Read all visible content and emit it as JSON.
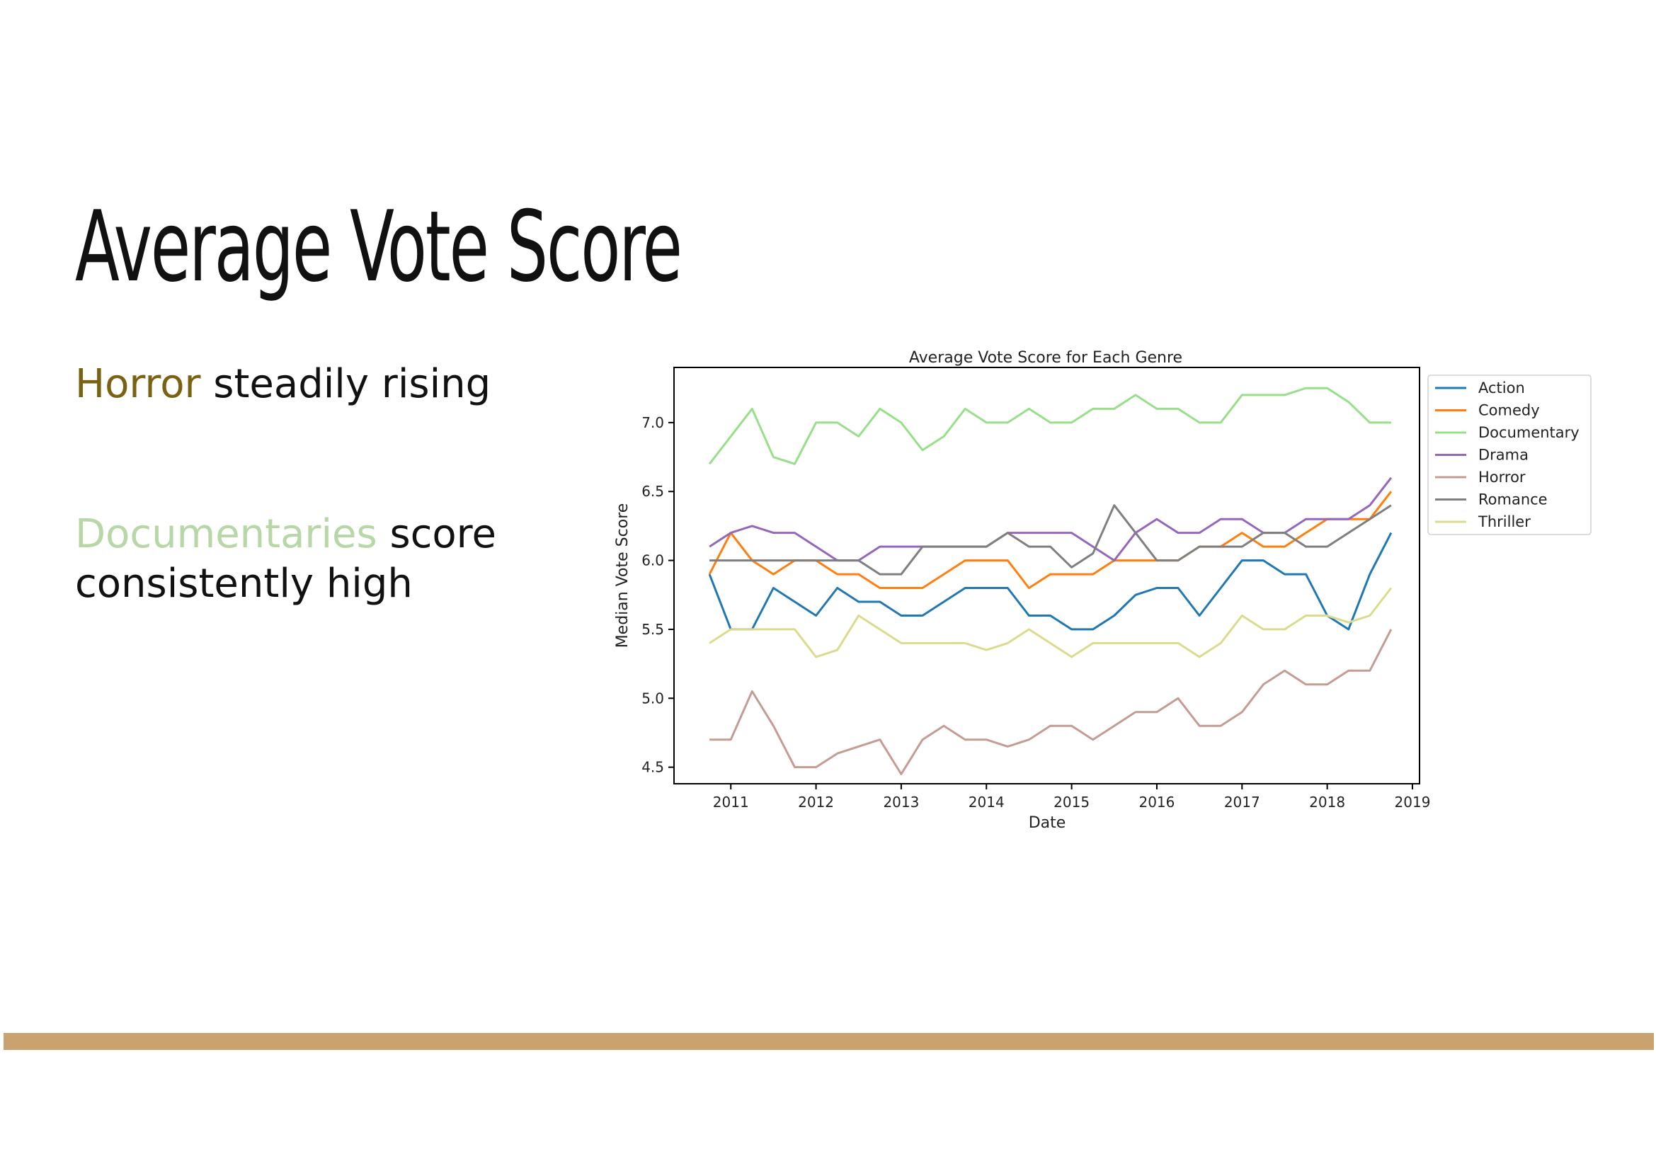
{
  "slide": {
    "title": "Average Vote Score",
    "bullet1": {
      "highlight": "Horror",
      "rest": " steadily rising",
      "highlight_color": "#7a6212"
    },
    "bullet2": {
      "highlight": "Documentaries",
      "rest": " score consistently high",
      "highlight_color": "#b7d7a6"
    },
    "footer_color": "#c9a26f"
  },
  "chart_data": {
    "type": "line",
    "title": "Average Vote Score for Each Genre",
    "xlabel": "Date",
    "ylabel": "Median Vote Score",
    "x_ticks": [
      "2011",
      "2012",
      "2013",
      "2014",
      "2015",
      "2016",
      "2017",
      "2018",
      "2019"
    ],
    "y_ticks": [
      "4.5",
      "5.0",
      "5.5",
      "6.0",
      "6.5",
      "7.0"
    ],
    "xlim": [
      "2010-05",
      "2019-02"
    ],
    "ylim": [
      4.38,
      7.4
    ],
    "legend_position": "outside-right-top",
    "grid": false,
    "x": [
      "2010-10",
      "2011-01",
      "2011-04",
      "2011-07",
      "2011-10",
      "2012-01",
      "2012-04",
      "2012-07",
      "2012-10",
      "2013-01",
      "2013-04",
      "2013-07",
      "2013-10",
      "2014-01",
      "2014-04",
      "2014-07",
      "2014-10",
      "2015-01",
      "2015-04",
      "2015-07",
      "2015-10",
      "2016-01",
      "2016-04",
      "2016-07",
      "2016-10",
      "2017-01",
      "2017-04",
      "2017-07",
      "2017-10",
      "2018-01",
      "2018-04",
      "2018-07",
      "2018-10"
    ],
    "series": [
      {
        "name": "Action",
        "color": "#1f77b4",
        "values": [
          5.9,
          5.5,
          5.5,
          5.8,
          5.7,
          5.6,
          5.8,
          5.7,
          5.7,
          5.6,
          5.6,
          5.7,
          5.8,
          5.8,
          5.8,
          5.6,
          5.6,
          5.5,
          5.5,
          5.6,
          5.75,
          5.8,
          5.8,
          5.6,
          5.8,
          6.0,
          6.0,
          5.9,
          5.9,
          5.6,
          5.5,
          5.9,
          6.2
        ]
      },
      {
        "name": "Comedy",
        "color": "#ff7f0e",
        "values": [
          5.9,
          6.2,
          6.0,
          5.9,
          6.0,
          6.0,
          5.9,
          5.9,
          5.8,
          5.8,
          5.8,
          5.9,
          6.0,
          6.0,
          6.0,
          5.8,
          5.9,
          5.9,
          5.9,
          6.0,
          6.0,
          6.0,
          6.0,
          6.1,
          6.1,
          6.2,
          6.1,
          6.1,
          6.2,
          6.3,
          6.3,
          6.3,
          6.5
        ]
      },
      {
        "name": "Documentary",
        "color": "#98df8a",
        "values": [
          6.7,
          6.9,
          7.1,
          6.75,
          6.7,
          7.0,
          7.0,
          6.9,
          7.1,
          7.0,
          6.8,
          6.9,
          7.1,
          7.0,
          7.0,
          7.1,
          7.0,
          7.0,
          7.1,
          7.1,
          7.2,
          7.1,
          7.1,
          7.0,
          7.0,
          7.2,
          7.2,
          7.2,
          7.25,
          7.25,
          7.15,
          7.0,
          7.0
        ]
      },
      {
        "name": "Drama",
        "color": "#9467bd",
        "values": [
          6.1,
          6.2,
          6.25,
          6.2,
          6.2,
          6.1,
          6.0,
          6.0,
          6.1,
          6.1,
          6.1,
          6.1,
          6.1,
          6.1,
          6.2,
          6.2,
          6.2,
          6.2,
          6.1,
          6.0,
          6.2,
          6.3,
          6.2,
          6.2,
          6.3,
          6.3,
          6.2,
          6.2,
          6.3,
          6.3,
          6.3,
          6.4,
          6.6
        ]
      },
      {
        "name": "Horror",
        "color": "#c49c94",
        "values": [
          4.7,
          4.7,
          5.05,
          4.8,
          4.5,
          4.5,
          4.6,
          4.65,
          4.7,
          4.45,
          4.7,
          4.8,
          4.7,
          4.7,
          4.65,
          4.7,
          4.8,
          4.8,
          4.7,
          4.8,
          4.9,
          4.9,
          5.0,
          4.8,
          4.8,
          4.9,
          5.1,
          5.2,
          5.1,
          5.1,
          5.2,
          5.2,
          5.5
        ]
      },
      {
        "name": "Romance",
        "color": "#7f7f7f",
        "values": [
          6.0,
          6.0,
          6.0,
          6.0,
          6.0,
          6.0,
          6.0,
          6.0,
          5.9,
          5.9,
          6.1,
          6.1,
          6.1,
          6.1,
          6.2,
          6.1,
          6.1,
          5.95,
          6.05,
          6.4,
          6.2,
          6.0,
          6.0,
          6.1,
          6.1,
          6.1,
          6.2,
          6.2,
          6.1,
          6.1,
          6.2,
          6.3,
          6.4
        ]
      },
      {
        "name": "Thriller",
        "color": "#dbdb8d",
        "values": [
          5.4,
          5.5,
          5.5,
          5.5,
          5.5,
          5.3,
          5.35,
          5.6,
          5.5,
          5.4,
          5.4,
          5.4,
          5.4,
          5.35,
          5.4,
          5.5,
          5.4,
          5.3,
          5.4,
          5.4,
          5.4,
          5.4,
          5.4,
          5.3,
          5.4,
          5.6,
          5.5,
          5.5,
          5.6,
          5.6,
          5.55,
          5.6,
          5.8
        ]
      }
    ]
  }
}
